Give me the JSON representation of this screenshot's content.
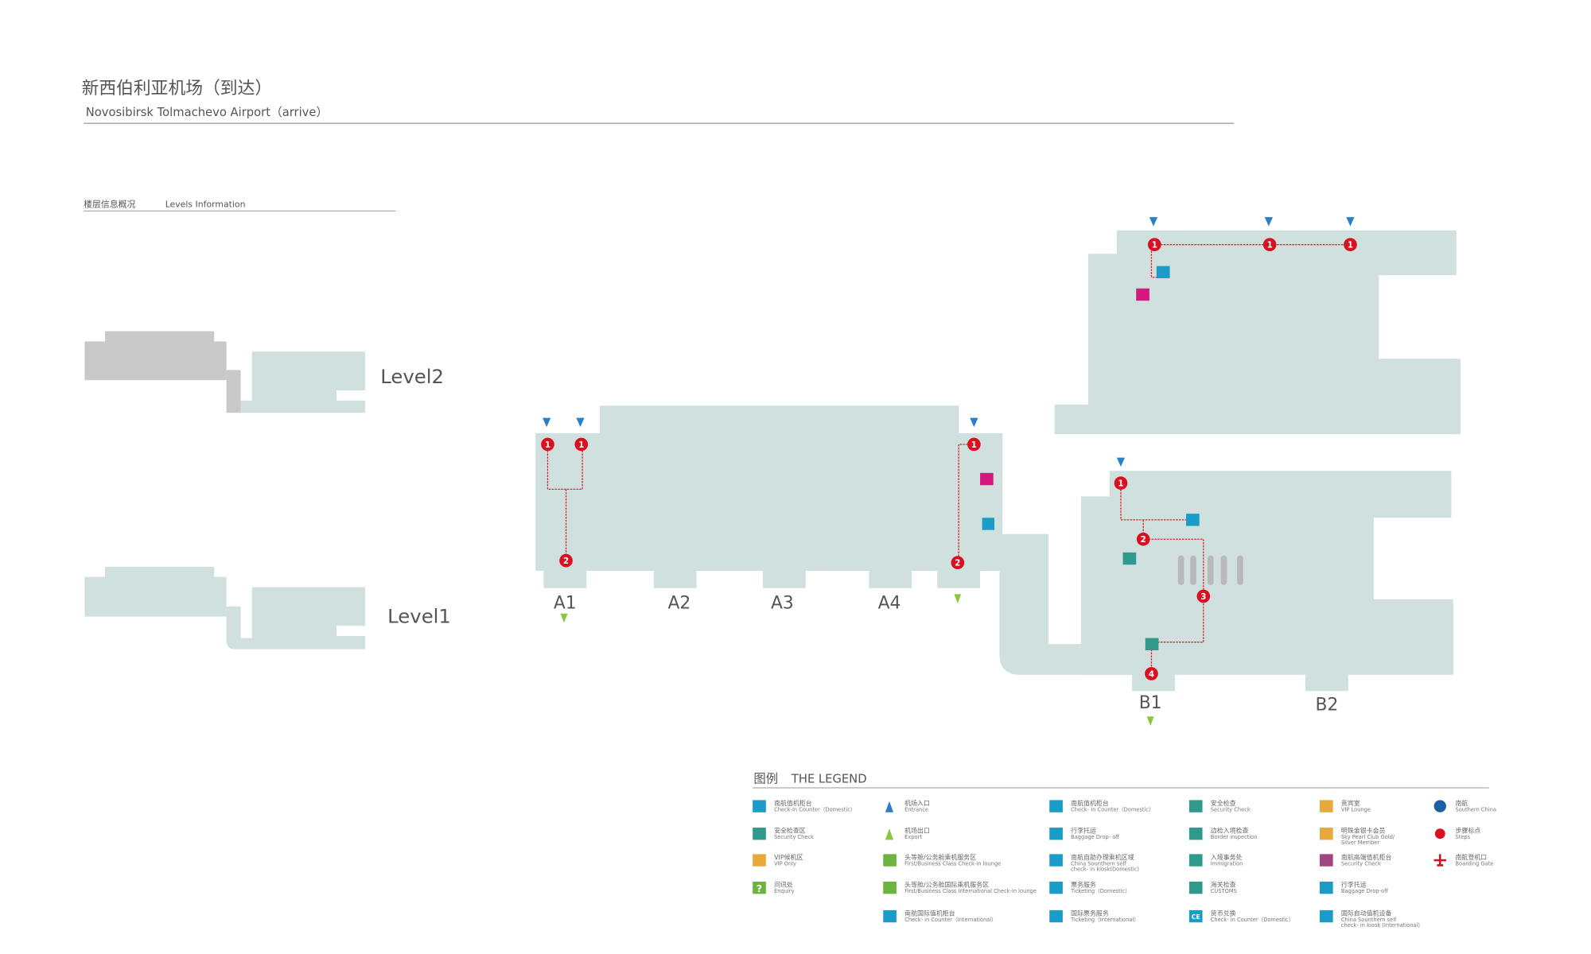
{
  "header": {
    "title": "新西伯利亚机场（到达）",
    "subtitle": "Novosibirsk Tolmachevo Airport（arrive）"
  },
  "levels": {
    "heading_zh": "楼层信息概况",
    "heading_en": "Levels Information",
    "items": [
      {
        "label": "Level2"
      },
      {
        "label": "Level1"
      }
    ]
  },
  "map": {
    "gates": [
      "A1",
      "A2",
      "A3",
      "A4",
      "B1",
      "B2"
    ],
    "step_labels": [
      "1",
      "2",
      "3",
      "4"
    ],
    "colors": {
      "floor": "#cfe0de",
      "route": "#e0202c",
      "step": "#d8101f",
      "entrance": "#2a7fc9",
      "exit": "#8cc63f"
    }
  },
  "legend": {
    "title_zh": "图例",
    "title_en": "THE LEGEND",
    "columns": [
      [
        {
          "zh": "南航值机柜台",
          "en": "Check-In Counter（Domestic）",
          "icon": "square-blue",
          "color": "#1a9cc9"
        },
        {
          "zh": "安全检查区",
          "en": "Security Check",
          "icon": "square-teal",
          "color": "#2f9a8c"
        },
        {
          "zh": "VIP候机区",
          "en": "VIP Only",
          "icon": "square-orange",
          "color": "#e6a93a"
        },
        {
          "zh": "问讯处",
          "en": "Enquiry",
          "icon": "question-icon",
          "color": "#6db33f"
        }
      ],
      [
        {
          "zh": "机场入口",
          "en": "Entrance",
          "icon": "entrance-icon",
          "color": "#2a7fc9"
        },
        {
          "zh": "机场出口",
          "en": "Export",
          "icon": "exit-icon",
          "color": "#8cc63f"
        },
        {
          "zh": "头等舱/公务舱乘机服务区",
          "en": "First/Business Class Check-in lounge",
          "icon": "first-class-icon",
          "color": "#6db33f"
        },
        {
          "zh": "头等舱/公务舱国际乘机服务区",
          "en": "First/Business Class International Check-in lounge",
          "icon": "first-class-intl-icon",
          "color": "#6db33f"
        },
        {
          "zh": "南航国际值机柜台",
          "en": "Check- in Counter（International）",
          "icon": "intl-counter-icon",
          "color": "#1a9cc9"
        }
      ],
      [
        {
          "zh": "南航值机柜台",
          "en": "Check- In Counter（Domestic）",
          "icon": "counter-icon",
          "color": "#1a9cc9"
        },
        {
          "zh": "行李托运",
          "en": "Baggage Drop- off",
          "icon": "baggage-icon",
          "color": "#1a9cc9"
        },
        {
          "zh": "南航自助办理乘机区域",
          "en": "China Sounthern self",
          "en2": "check- in kiosk(Domestic)",
          "icon": "kiosk-icon",
          "color": "#1a9cc9"
        },
        {
          "zh": "票务服务",
          "en": "Ticketing（Domestic）",
          "icon": "ticketing-icon",
          "color": "#1a9cc9"
        },
        {
          "zh": "国际票务服务",
          "en": "Ticketing（International）",
          "icon": "intl-ticketing-icon",
          "color": "#1a9cc9"
        }
      ],
      [
        {
          "zh": "安全检查",
          "en": "Security Check",
          "icon": "security-gate-icon",
          "color": "#2f9a8c"
        },
        {
          "zh": "边检入境检查",
          "en": "Border inspection",
          "icon": "border-icon",
          "color": "#2f9a8c"
        },
        {
          "zh": "入境事务处",
          "en": "Immigration",
          "icon": "immigration-icon",
          "color": "#2f9a8c"
        },
        {
          "zh": "海关检查",
          "en": "CUSTOMS",
          "icon": "customs-icon",
          "color": "#2f9a8c"
        },
        {
          "zh": "货币兑换",
          "en": "Check- in Counter（Domestic）",
          "icon": "currency-exchange-icon",
          "color": "#1a9cc9",
          "glyph": "CE"
        }
      ],
      [
        {
          "zh": "贵宾室",
          "en": "VIP Lounge",
          "icon": "vip-lounge-icon",
          "color": "#e6a93a"
        },
        {
          "zh": "明珠金银卡会员",
          "en": "Sky Pearl Club Gold/",
          "en2": "Silver Member",
          "icon": "sky-pearl-icon",
          "color": "#e6a93a"
        },
        {
          "zh": "南航高端值机柜台",
          "en": "Security Check",
          "icon": "premium-counter-icon",
          "color": "#a0457f"
        },
        {
          "zh": "行李托运",
          "en": "Baggage Drop-off",
          "icon": "baggage-icon",
          "color": "#1a9cc9"
        },
        {
          "zh": "国际自动值机设备",
          "en": "China Sounthern self",
          "en2": "check- in kiosk (International)",
          "icon": "intl-kiosk-icon",
          "color": "#1a9cc9"
        }
      ],
      [
        {
          "zh": "南航",
          "en": "Southern China",
          "icon": "china-southern-logo-icon",
          "color": "#1f5fa8"
        },
        {
          "zh": "步骤标点",
          "en": "Steps",
          "icon": "step-marker-icon",
          "color": "#d8101f"
        },
        {
          "zh": "南航登机口",
          "en": "Boarding Gate",
          "icon": "plane-icon",
          "color": "#d8101f"
        }
      ]
    ]
  }
}
